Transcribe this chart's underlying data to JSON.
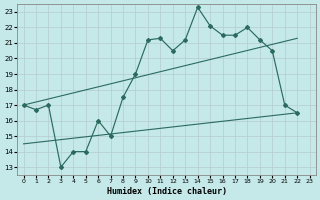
{
  "xlabel": "Humidex (Indice chaleur)",
  "bg_color": "#c5e8e8",
  "line_color": "#2a6b5e",
  "xlim": [
    0,
    23
  ],
  "ylim": [
    13,
    23
  ],
  "yticks": [
    13,
    14,
    15,
    16,
    17,
    18,
    19,
    20,
    21,
    22,
    23
  ],
  "xticks": [
    0,
    1,
    2,
    3,
    4,
    5,
    6,
    7,
    8,
    9,
    10,
    11,
    12,
    13,
    14,
    15,
    16,
    17,
    18,
    19,
    20,
    21,
    22,
    23
  ],
  "main_x": [
    0,
    1,
    2,
    3,
    4,
    5,
    6,
    7,
    8,
    9,
    10,
    11,
    12,
    13,
    14,
    15,
    16,
    17,
    18,
    19,
    20,
    21,
    22
  ],
  "main_y": [
    17.0,
    16.7,
    17.0,
    13.0,
    14.0,
    14.0,
    16.0,
    15.0,
    17.5,
    19.0,
    21.2,
    21.3,
    20.5,
    21.2,
    23.3,
    22.1,
    21.5,
    21.5,
    22.0,
    21.2,
    20.5,
    17.0,
    16.5
  ],
  "trend1_x": [
    0,
    22
  ],
  "trend1_y": [
    17.0,
    21.3
  ],
  "trend2_x": [
    0,
    22
  ],
  "trend2_y": [
    14.5,
    16.5
  ]
}
